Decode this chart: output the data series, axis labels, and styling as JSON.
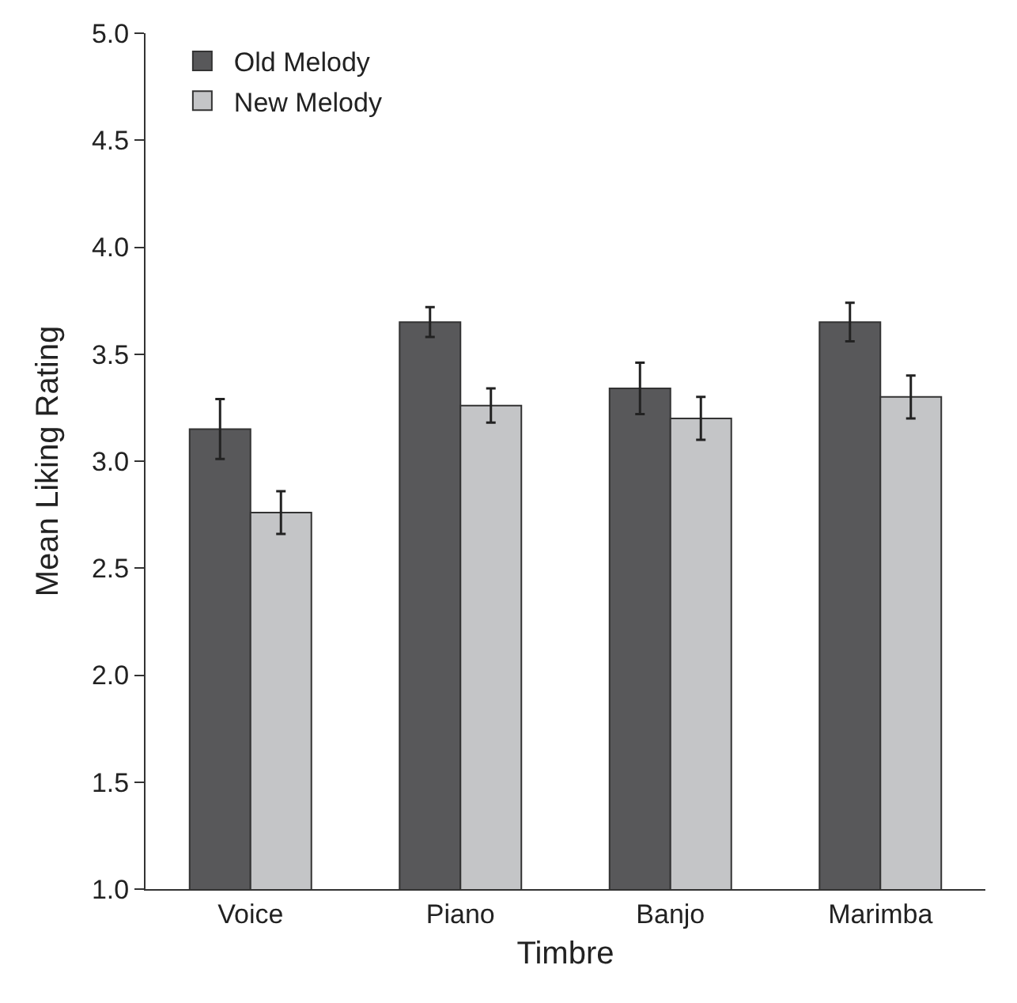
{
  "chart_data": {
    "type": "bar",
    "xlabel": "Timbre",
    "ylabel": "Mean Liking Rating",
    "categories": [
      "Voice",
      "Piano",
      "Banjo",
      "Marimba"
    ],
    "series": [
      {
        "name": "Old Melody",
        "color": "#58585a",
        "values": [
          3.15,
          3.65,
          3.34,
          3.65
        ],
        "errors": [
          0.14,
          0.07,
          0.12,
          0.09
        ]
      },
      {
        "name": "New Melody",
        "color": "#c4c5c7",
        "values": [
          2.76,
          3.26,
          3.2,
          3.3
        ],
        "errors": [
          0.1,
          0.08,
          0.1,
          0.1
        ]
      }
    ],
    "ylim": [
      1.0,
      5.0
    ],
    "yticks": [
      {
        "value": 1,
        "label": "1.0"
      },
      1.5,
      {
        "value": 2,
        "label": "2.0"
      },
      2.5,
      {
        "value": 3,
        "label": "3.0"
      },
      3.5,
      {
        "value": 4,
        "label": "4.0"
      },
      4.5,
      {
        "value": 5,
        "label": "5.0"
      }
    ],
    "legend": "top left"
  }
}
